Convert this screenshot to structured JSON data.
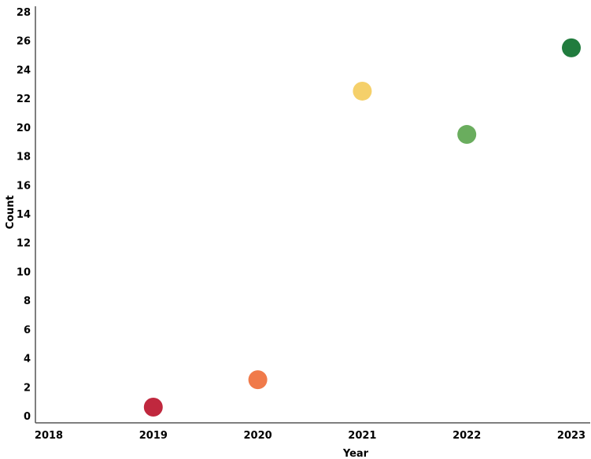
{
  "chart_data": {
    "type": "scatter",
    "xlabel": "Year",
    "ylabel": "Count",
    "x_ticks": [
      "2018",
      "2019",
      "2020",
      "2021",
      "2022",
      "2023"
    ],
    "y_ticks": [
      "0",
      "2",
      "4",
      "6",
      "8",
      "10",
      "12",
      "14",
      "16",
      "18",
      "20",
      "22",
      "24",
      "26",
      "28"
    ],
    "xlim": [
      2018,
      2023
    ],
    "ylim": [
      0,
      28
    ],
    "grid": false,
    "points": [
      {
        "x": 2019,
        "y": 0.6,
        "color": "#c0283e"
      },
      {
        "x": 2020,
        "y": 2.5,
        "color": "#f07a4a"
      },
      {
        "x": 2021,
        "y": 22.5,
        "color": "#f5d06a"
      },
      {
        "x": 2022,
        "y": 19.5,
        "color": "#6aad5e"
      },
      {
        "x": 2023,
        "y": 25.5,
        "color": "#217c3e"
      }
    ]
  }
}
